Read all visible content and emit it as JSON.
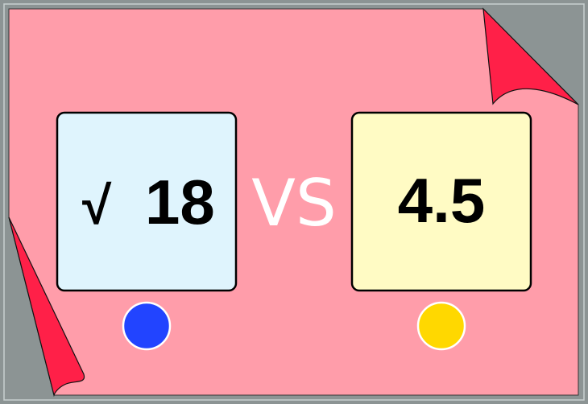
{
  "left_card": {
    "value": "18",
    "symbol": "√",
    "color": "#dff4fd"
  },
  "right_card": {
    "value": "4.5",
    "color": "#fffbc4"
  },
  "vs_label": "VS",
  "buttons": {
    "left_color": "#2244ff",
    "right_color": "#ffd800"
  },
  "colors": {
    "background": "#ff9daa",
    "frame": "#8c9494",
    "curl": "#ff2048"
  }
}
